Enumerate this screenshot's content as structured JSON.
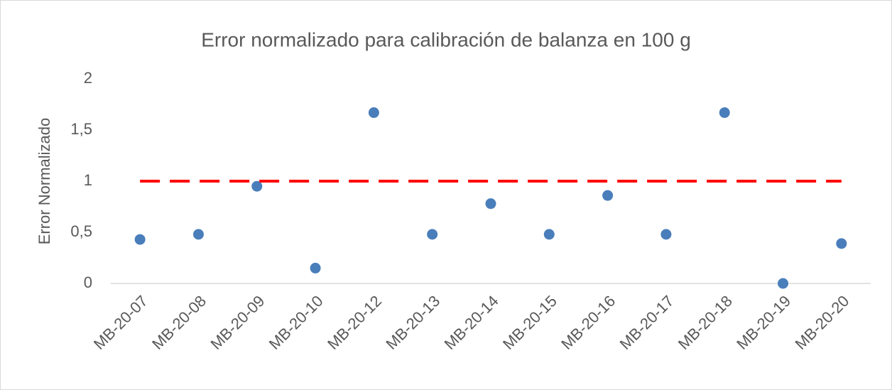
{
  "chart_data": {
    "type": "scatter",
    "title": "Error normalizado para calibración de balanza en 100 g",
    "y_label": "Error Normalizado",
    "categories": [
      "MB-20-07",
      "MB-20-08",
      "MB-20-09",
      "MB-20-10",
      "MB-20-12",
      "MB-20-13",
      "MB-20-14",
      "MB-20-15",
      "MB-20-16",
      "MB-20-17",
      "MB-20-18",
      "MB-20-19",
      "MB-20-20"
    ],
    "series": [
      {
        "type": "scatter",
        "color": "#4a7ebb",
        "values": [
          0.43,
          0.48,
          0.95,
          0.15,
          1.67,
          0.48,
          0.78,
          0.48,
          0.86,
          0.48,
          1.67,
          0,
          0.39
        ]
      },
      {
        "type": "line",
        "color": "#ff0000",
        "dashed": true,
        "values": [
          1,
          1,
          1,
          1,
          1,
          1,
          1,
          1,
          1,
          1,
          1,
          1,
          1
        ]
      }
    ],
    "ylim": [
      0,
      2
    ],
    "yticks": [
      0,
      {
        "value": 0.5,
        "label": "0,5"
      },
      1,
      {
        "value": 1.5,
        "label": "1,5"
      },
      2
    ],
    "grid": false
  }
}
